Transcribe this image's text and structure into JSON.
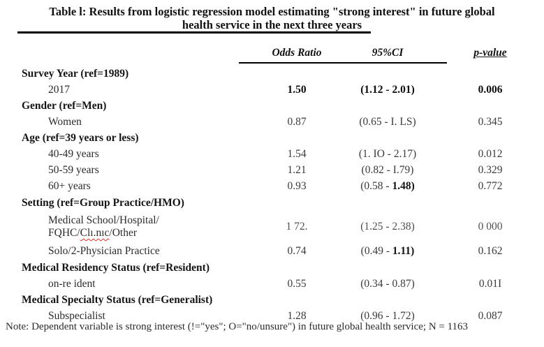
{
  "title": {
    "line1": "Table l: Results from logistic regression model estimating \"strong interest\" in future global",
    "line2": "health service in the next three years"
  },
  "columns": {
    "odds": "Odds Ratio",
    "ci": "95%CI",
    "p": "p-value"
  },
  "table": {
    "rows": [
      {
        "type": "section",
        "label": "Survey Year (ref=1989)"
      },
      {
        "type": "item",
        "label": "2017",
        "odds": "1.50",
        "ci": "(1.12 - 2.01)",
        "ci_bold": "",
        "p": "0.006",
        "emphasis": true
      },
      {
        "type": "section",
        "label": "Gender (ref=Men)"
      },
      {
        "type": "item",
        "label": "Women",
        "odds": "0.87",
        "ci": "(0.65 - I. LS)",
        "ci_bold": "",
        "p": "0.345"
      },
      {
        "type": "section",
        "label": "Age (ref=39 years or less)"
      },
      {
        "type": "item",
        "label": "40-49 years",
        "odds": "1.54",
        "ci": "(1. IO - 2.17)",
        "ci_bold": "",
        "p": "0.012"
      },
      {
        "type": "item",
        "label": "50-59 years",
        "odds": "1.21",
        "ci": "(0.82 - I.79)",
        "ci_bold": "",
        "p": "0.329"
      },
      {
        "type": "item",
        "label": "60+ years",
        "odds": "0.93",
        "ci": "(0.58 - ",
        "ci_bold": "1.48)",
        "p": "0.772"
      },
      {
        "type": "section",
        "label": "Setting (ref=Group Practice/HMO)"
      },
      {
        "type": "item2",
        "label_line1": "Medical School/Hospital/",
        "label2_pre": "FQHC/",
        "label2_misspelled": "Clı.nıc",
        "label2_post": "/Other",
        "odds": "1 72.",
        "ci": "(1.25 - 2.38)",
        "ci_bold": "",
        "p": "0 000"
      },
      {
        "type": "item",
        "label": "Solo/2-Physician Practice",
        "odds": "0.74",
        "ci": "(0.49 - ",
        "ci_bold": "1.11)",
        "p": "0.162"
      },
      {
        "type": "section",
        "label": "Medical Residency Status (ref=Resident)"
      },
      {
        "type": "item",
        "label": "on-re ident",
        "odds": "0.55",
        "ci": "(0.34 - 0.87)",
        "ci_bold": "",
        "p": "0.01I"
      },
      {
        "type": "section",
        "label": "Medical Specialty Status (ref=Generalist)"
      },
      {
        "type": "item",
        "label": "Subspecialist",
        "odds": "1.28",
        "ci": "(0.96 - 1.72)",
        "ci_bold": "",
        "p": "0.087"
      }
    ]
  },
  "note": "Note: Dependent variable is strong interest (!=\"yes\"; O=\"no/unsure\") in future global health service; N = 1163",
  "colors": {
    "spellcheck_underline": "#e03020",
    "text": "#262626",
    "rule": "#000000"
  }
}
